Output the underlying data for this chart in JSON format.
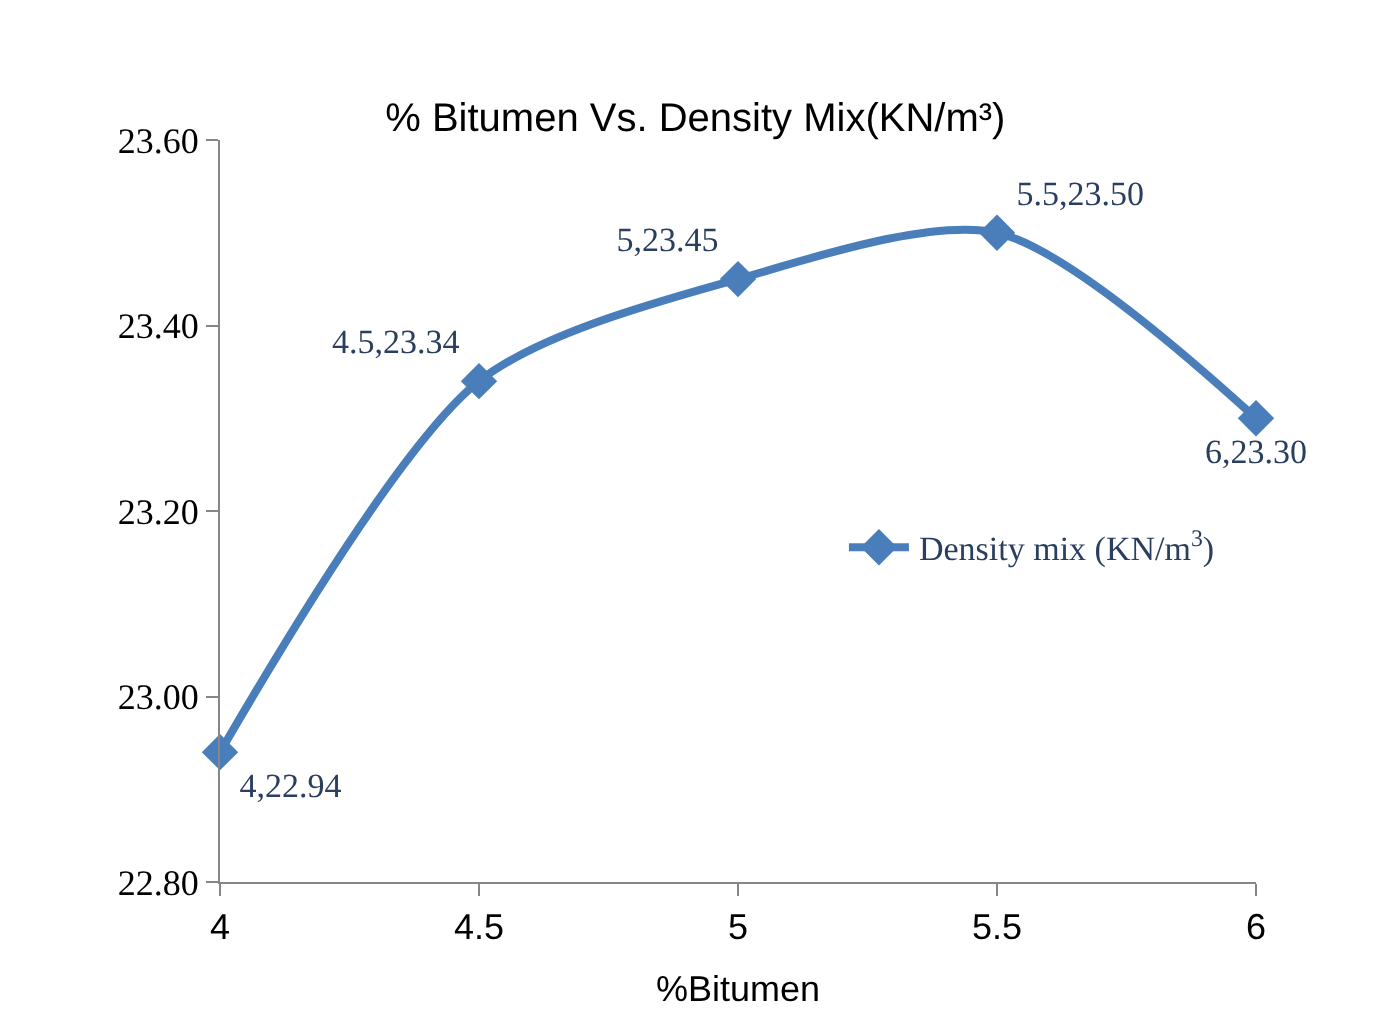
{
  "chart_data": {
    "type": "line",
    "title": "% Bitumen Vs. Density Mix(KN/m³)",
    "xlabel": "%Bitumen",
    "x": [
      4,
      4.5,
      5,
      5.5,
      6
    ],
    "series": [
      {
        "name": "Density mix (KN/m$^{3}$)",
        "color": "#4a7ebb",
        "values": [
          22.94,
          23.34,
          23.45,
          23.5,
          23.3
        ],
        "value_labels": [
          "4,22.94",
          "4.5,23.34",
          "5,23.45",
          "5.5,23.50",
          "6,23.30"
        ]
      }
    ],
    "xlim": [
      4,
      6
    ],
    "xticks": [
      4,
      4.5,
      5,
      5.5,
      6
    ],
    "ylim": [
      22.8,
      23.6
    ],
    "yticks": [
      {
        "value": 22.8,
        "label": "22.80"
      },
      {
        "value": 23.0,
        "label": "23.00"
      },
      {
        "value": 23.2,
        "label": "23.20"
      },
      {
        "value": 23.4,
        "label": "23.40"
      },
      {
        "value": 23.6,
        "label": "23.60"
      }
    ],
    "marker": "diamond",
    "line_style": "solid",
    "legend": "right"
  }
}
